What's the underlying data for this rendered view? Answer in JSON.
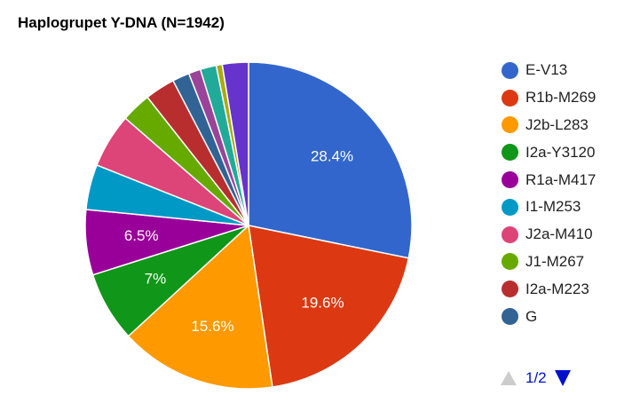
{
  "chart_data": {
    "type": "pie",
    "title": "Haplogrupet Y-DNA (N=1942)",
    "slices": [
      {
        "label": "E-V13",
        "value": 28.4,
        "color": "#3366cc",
        "data_label": "28.4%"
      },
      {
        "label": "R1b-M269",
        "value": 19.6,
        "color": "#dc3912",
        "data_label": "19.6%"
      },
      {
        "label": "J2b-L283",
        "value": 15.6,
        "color": "#ff9900",
        "data_label": "15.6%"
      },
      {
        "label": "I2a-Y3120",
        "value": 7.0,
        "color": "#109618",
        "data_label": "7%"
      },
      {
        "label": "R1a-M417",
        "value": 6.5,
        "color": "#990099",
        "data_label": "6.5%"
      },
      {
        "label": "I1-M253",
        "value": 4.5,
        "color": "#0099c6",
        "data_label": ""
      },
      {
        "label": "J2a-M410",
        "value": 5.4,
        "color": "#dd4477",
        "data_label": ""
      },
      {
        "label": "J1-M267",
        "value": 3.0,
        "color": "#66aa00",
        "data_label": ""
      },
      {
        "label": "I2a-M223",
        "value": 3.0,
        "color": "#b82e2e",
        "data_label": ""
      },
      {
        "label": "G",
        "value": 1.7,
        "color": "#316395",
        "data_label": ""
      },
      {
        "label": "",
        "value": 1.2,
        "color": "#994499",
        "data_label": ""
      },
      {
        "label": "",
        "value": 1.6,
        "color": "#22aa99",
        "data_label": ""
      },
      {
        "label": "",
        "value": 0.6,
        "color": "#aaaa11",
        "data_label": ""
      },
      {
        "label": "",
        "value": 2.6,
        "color": "#6633cc",
        "data_label": ""
      }
    ],
    "legend_position": "right",
    "legend_page": "1/2"
  }
}
